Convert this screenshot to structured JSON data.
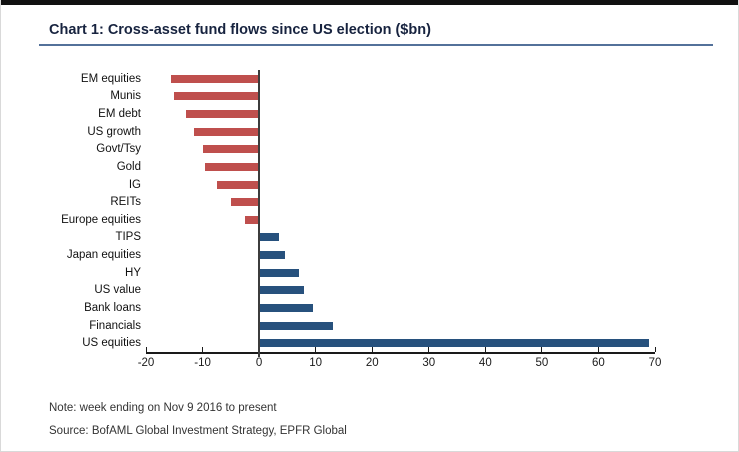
{
  "header": {
    "title": "Chart 1: Cross-asset fund flows since US election ($bn)"
  },
  "chart_data": {
    "type": "bar",
    "orientation": "horizontal",
    "title": "Chart 1: Cross-asset fund flows since US election ($bn)",
    "categories": [
      "EM equities",
      "Munis",
      "EM debt",
      "US growth",
      "Govt/Tsy",
      "Gold",
      "IG",
      "REITs",
      "Europe equities",
      "TIPS",
      "Japan equities",
      "HY",
      "US value",
      "Bank loans",
      "Financials",
      "US equities"
    ],
    "values": [
      -15.5,
      -15,
      -13,
      -11.5,
      -10,
      -9.5,
      -7.5,
      -5,
      -2.5,
      3.5,
      4.5,
      7,
      8,
      9.5,
      13,
      69
    ],
    "xlim": [
      -20,
      70
    ],
    "xticks": [
      -20,
      -10,
      0,
      10,
      20,
      30,
      40,
      50,
      60,
      70
    ],
    "grid": false,
    "legend": "none",
    "colors": {
      "negative_bar": "#bf4f4d",
      "positive_bar": "#27517d",
      "title_text": "#17233f",
      "title_rule": "#53719a",
      "axis": "#1a1a1a"
    }
  },
  "footer": {
    "note": "Note: week ending on Nov 9 2016 to present",
    "source": "Source: BofAML Global Investment Strategy, EPFR Global"
  }
}
